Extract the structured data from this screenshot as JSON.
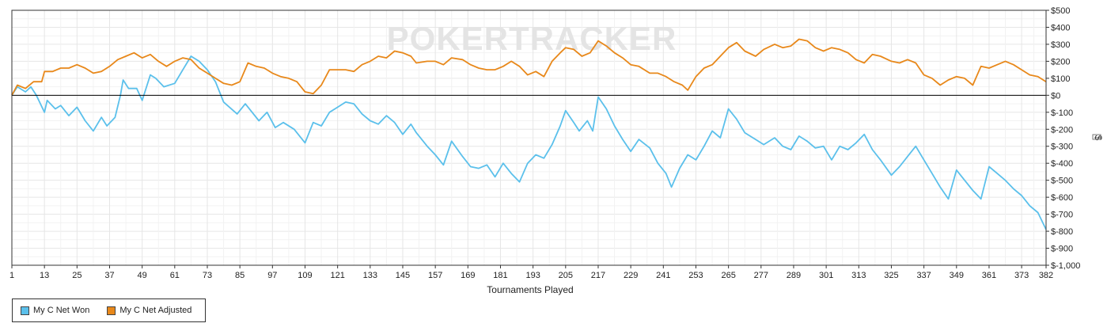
{
  "watermark": "POKERTRACKER",
  "chart_data": {
    "type": "line",
    "xlabel": "Tournaments Played",
    "ylabel": "$",
    "xlim": [
      1,
      382
    ],
    "ylim": [
      -1000,
      500
    ],
    "x_ticks": [
      "1",
      "13",
      "25",
      "37",
      "49",
      "61",
      "73",
      "85",
      "97",
      "109",
      "121",
      "133",
      "145",
      "157",
      "169",
      "181",
      "193",
      "205",
      "217",
      "229",
      "241",
      "253",
      "265",
      "277",
      "289",
      "301",
      "313",
      "325",
      "337",
      "349",
      "361",
      "373",
      "382"
    ],
    "y_ticks": [
      "$500",
      "$400",
      "$300",
      "$200",
      "$100",
      "$0",
      "$-100",
      "$-200",
      "$-300",
      "$-400",
      "$-500",
      "$-600",
      "$-700",
      "$-800",
      "$-900",
      "$-1,000"
    ],
    "grid": true,
    "legend_position": "bottom-left",
    "series": [
      {
        "name": "My C Net Won",
        "color": "#5bc0eb",
        "points": [
          [
            1,
            0
          ],
          [
            3,
            50
          ],
          [
            6,
            20
          ],
          [
            8,
            50
          ],
          [
            10,
            0
          ],
          [
            13,
            -100
          ],
          [
            14,
            -30
          ],
          [
            17,
            -80
          ],
          [
            19,
            -60
          ],
          [
            22,
            -120
          ],
          [
            25,
            -70
          ],
          [
            28,
            -150
          ],
          [
            31,
            -210
          ],
          [
            34,
            -130
          ],
          [
            36,
            -180
          ],
          [
            39,
            -130
          ],
          [
            41,
            0
          ],
          [
            42,
            90
          ],
          [
            44,
            40
          ],
          [
            47,
            40
          ],
          [
            49,
            -30
          ],
          [
            52,
            120
          ],
          [
            54,
            100
          ],
          [
            57,
            50
          ],
          [
            61,
            70
          ],
          [
            64,
            150
          ],
          [
            67,
            230
          ],
          [
            70,
            200
          ],
          [
            73,
            150
          ],
          [
            76,
            80
          ],
          [
            79,
            -40
          ],
          [
            84,
            -110
          ],
          [
            87,
            -50
          ],
          [
            92,
            -150
          ],
          [
            95,
            -100
          ],
          [
            98,
            -190
          ],
          [
            101,
            -160
          ],
          [
            105,
            -200
          ],
          [
            109,
            -280
          ],
          [
            112,
            -160
          ],
          [
            115,
            -180
          ],
          [
            118,
            -100
          ],
          [
            121,
            -70
          ],
          [
            124,
            -40
          ],
          [
            127,
            -50
          ],
          [
            130,
            -110
          ],
          [
            133,
            -150
          ],
          [
            136,
            -170
          ],
          [
            139,
            -120
          ],
          [
            142,
            -160
          ],
          [
            145,
            -230
          ],
          [
            148,
            -170
          ],
          [
            150,
            -220
          ],
          [
            154,
            -300
          ],
          [
            157,
            -350
          ],
          [
            160,
            -410
          ],
          [
            163,
            -270
          ],
          [
            167,
            -360
          ],
          [
            170,
            -420
          ],
          [
            173,
            -430
          ],
          [
            176,
            -410
          ],
          [
            179,
            -480
          ],
          [
            182,
            -400
          ],
          [
            185,
            -460
          ],
          [
            188,
            -510
          ],
          [
            191,
            -400
          ],
          [
            194,
            -350
          ],
          [
            197,
            -370
          ],
          [
            200,
            -290
          ],
          [
            203,
            -180
          ],
          [
            205,
            -90
          ],
          [
            208,
            -160
          ],
          [
            210,
            -210
          ],
          [
            213,
            -150
          ],
          [
            215,
            -210
          ],
          [
            217,
            -10
          ],
          [
            220,
            -80
          ],
          [
            223,
            -180
          ],
          [
            226,
            -260
          ],
          [
            229,
            -330
          ],
          [
            232,
            -260
          ],
          [
            236,
            -310
          ],
          [
            239,
            -400
          ],
          [
            242,
            -460
          ],
          [
            244,
            -540
          ],
          [
            247,
            -430
          ],
          [
            250,
            -350
          ],
          [
            253,
            -380
          ],
          [
            256,
            -300
          ],
          [
            259,
            -210
          ],
          [
            262,
            -250
          ],
          [
            265,
            -80
          ],
          [
            268,
            -140
          ],
          [
            271,
            -220
          ],
          [
            275,
            -260
          ],
          [
            278,
            -290
          ],
          [
            282,
            -250
          ],
          [
            285,
            -300
          ],
          [
            288,
            -320
          ],
          [
            291,
            -240
          ],
          [
            294,
            -270
          ],
          [
            297,
            -310
          ],
          [
            300,
            -300
          ],
          [
            303,
            -380
          ],
          [
            306,
            -300
          ],
          [
            309,
            -320
          ],
          [
            312,
            -280
          ],
          [
            315,
            -230
          ],
          [
            318,
            -320
          ],
          [
            321,
            -380
          ],
          [
            325,
            -470
          ],
          [
            328,
            -420
          ],
          [
            331,
            -360
          ],
          [
            334,
            -300
          ],
          [
            337,
            -380
          ],
          [
            340,
            -460
          ],
          [
            343,
            -540
          ],
          [
            346,
            -610
          ],
          [
            349,
            -440
          ],
          [
            352,
            -500
          ],
          [
            355,
            -560
          ],
          [
            358,
            -610
          ],
          [
            361,
            -420
          ],
          [
            364,
            -460
          ],
          [
            367,
            -500
          ],
          [
            370,
            -550
          ],
          [
            373,
            -590
          ],
          [
            376,
            -650
          ],
          [
            379,
            -690
          ],
          [
            382,
            -790
          ]
        ]
      },
      {
        "name": "My C Net Adjusted",
        "color": "#e8881a",
        "points": [
          [
            1,
            0
          ],
          [
            3,
            60
          ],
          [
            6,
            40
          ],
          [
            9,
            80
          ],
          [
            12,
            80
          ],
          [
            13,
            140
          ],
          [
            16,
            140
          ],
          [
            19,
            160
          ],
          [
            22,
            160
          ],
          [
            25,
            180
          ],
          [
            28,
            160
          ],
          [
            31,
            130
          ],
          [
            34,
            140
          ],
          [
            37,
            170
          ],
          [
            40,
            210
          ],
          [
            43,
            230
          ],
          [
            46,
            250
          ],
          [
            49,
            220
          ],
          [
            52,
            240
          ],
          [
            55,
            200
          ],
          [
            58,
            170
          ],
          [
            61,
            200
          ],
          [
            64,
            220
          ],
          [
            67,
            210
          ],
          [
            70,
            160
          ],
          [
            73,
            130
          ],
          [
            76,
            100
          ],
          [
            79,
            70
          ],
          [
            82,
            60
          ],
          [
            85,
            80
          ],
          [
            88,
            190
          ],
          [
            91,
            170
          ],
          [
            94,
            160
          ],
          [
            97,
            130
          ],
          [
            100,
            110
          ],
          [
            103,
            100
          ],
          [
            106,
            80
          ],
          [
            109,
            20
          ],
          [
            112,
            10
          ],
          [
            115,
            60
          ],
          [
            118,
            150
          ],
          [
            121,
            150
          ],
          [
            124,
            150
          ],
          [
            127,
            140
          ],
          [
            130,
            180
          ],
          [
            133,
            200
          ],
          [
            136,
            230
          ],
          [
            139,
            220
          ],
          [
            142,
            260
          ],
          [
            145,
            250
          ],
          [
            148,
            230
          ],
          [
            150,
            190
          ],
          [
            154,
            200
          ],
          [
            157,
            200
          ],
          [
            160,
            180
          ],
          [
            163,
            220
          ],
          [
            167,
            210
          ],
          [
            170,
            180
          ],
          [
            173,
            160
          ],
          [
            176,
            150
          ],
          [
            179,
            150
          ],
          [
            182,
            170
          ],
          [
            185,
            200
          ],
          [
            188,
            170
          ],
          [
            191,
            120
          ],
          [
            194,
            140
          ],
          [
            197,
            110
          ],
          [
            200,
            200
          ],
          [
            203,
            250
          ],
          [
            205,
            280
          ],
          [
            208,
            270
          ],
          [
            211,
            230
          ],
          [
            214,
            250
          ],
          [
            217,
            320
          ],
          [
            220,
            290
          ],
          [
            223,
            250
          ],
          [
            226,
            220
          ],
          [
            229,
            180
          ],
          [
            232,
            170
          ],
          [
            236,
            130
          ],
          [
            239,
            130
          ],
          [
            242,
            110
          ],
          [
            245,
            80
          ],
          [
            248,
            60
          ],
          [
            250,
            30
          ],
          [
            253,
            110
          ],
          [
            256,
            160
          ],
          [
            259,
            180
          ],
          [
            262,
            230
          ],
          [
            265,
            280
          ],
          [
            268,
            310
          ],
          [
            271,
            260
          ],
          [
            275,
            230
          ],
          [
            278,
            270
          ],
          [
            282,
            300
          ],
          [
            285,
            280
          ],
          [
            288,
            290
          ],
          [
            291,
            330
          ],
          [
            294,
            320
          ],
          [
            297,
            280
          ],
          [
            300,
            260
          ],
          [
            303,
            280
          ],
          [
            306,
            270
          ],
          [
            309,
            250
          ],
          [
            312,
            210
          ],
          [
            315,
            190
          ],
          [
            318,
            240
          ],
          [
            321,
            230
          ],
          [
            325,
            200
          ],
          [
            328,
            190
          ],
          [
            331,
            210
          ],
          [
            334,
            190
          ],
          [
            337,
            120
          ],
          [
            340,
            100
          ],
          [
            343,
            60
          ],
          [
            346,
            90
          ],
          [
            349,
            110
          ],
          [
            352,
            100
          ],
          [
            355,
            60
          ],
          [
            358,
            170
          ],
          [
            361,
            160
          ],
          [
            364,
            180
          ],
          [
            367,
            200
          ],
          [
            370,
            180
          ],
          [
            373,
            150
          ],
          [
            376,
            120
          ],
          [
            379,
            110
          ],
          [
            382,
            80
          ]
        ]
      }
    ]
  }
}
